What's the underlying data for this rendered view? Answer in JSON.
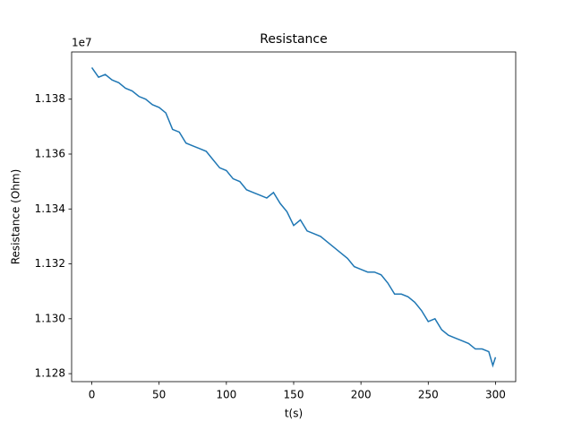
{
  "chart_data": {
    "type": "line",
    "title": "Resistance",
    "xlabel": "t(s)",
    "ylabel": "Resistance (Ohm)",
    "y_offset_label": "1e7",
    "x": [
      0,
      5,
      10,
      15,
      20,
      25,
      30,
      35,
      40,
      45,
      50,
      55,
      60,
      65,
      70,
      75,
      80,
      85,
      90,
      95,
      100,
      105,
      110,
      115,
      120,
      125,
      130,
      135,
      140,
      145,
      150,
      155,
      160,
      165,
      170,
      175,
      180,
      185,
      190,
      195,
      200,
      205,
      210,
      215,
      220,
      225,
      230,
      235,
      240,
      245,
      250,
      255,
      260,
      265,
      270,
      275,
      280,
      285,
      290,
      295,
      298,
      300
    ],
    "series": [
      {
        "name": "Resistance",
        "color": "#1f77b4",
        "values": [
          11391500,
          11388000,
          11389000,
          11387000,
          11386000,
          11384000,
          11383000,
          11381000,
          11380000,
          11378000,
          11377000,
          11375000,
          11369000,
          11368000,
          11364000,
          11363000,
          11362000,
          11361000,
          11358000,
          11355000,
          11354000,
          11351000,
          11350000,
          11347000,
          11346000,
          11345000,
          11344000,
          11346000,
          11342000,
          11339000,
          11334000,
          11336000,
          11332000,
          11331000,
          11330000,
          11328000,
          11326000,
          11324000,
          11322000,
          11319000,
          11318000,
          11317000,
          11317000,
          11316000,
          11313000,
          11309000,
          11309000,
          11308000,
          11306000,
          11303000,
          11299000,
          11300000,
          11296000,
          11294000,
          11293000,
          11292000,
          11291000,
          11289000,
          11289000,
          11288000,
          11283000,
          11286000
        ]
      }
    ],
    "xlim": [
      -15,
      315
    ],
    "ylim": [
      11277100,
      11397200
    ],
    "xticks": [
      0,
      50,
      100,
      150,
      200,
      250,
      300
    ],
    "yticks": [
      {
        "value": 11280000,
        "label": "1.128"
      },
      {
        "value": 11300000,
        "label": "1.130"
      },
      {
        "value": 11320000,
        "label": "1.132"
      },
      {
        "value": 11340000,
        "label": "1.134"
      },
      {
        "value": 11360000,
        "label": "1.136"
      },
      {
        "value": 11380000,
        "label": "1.138"
      }
    ],
    "grid": false
  }
}
